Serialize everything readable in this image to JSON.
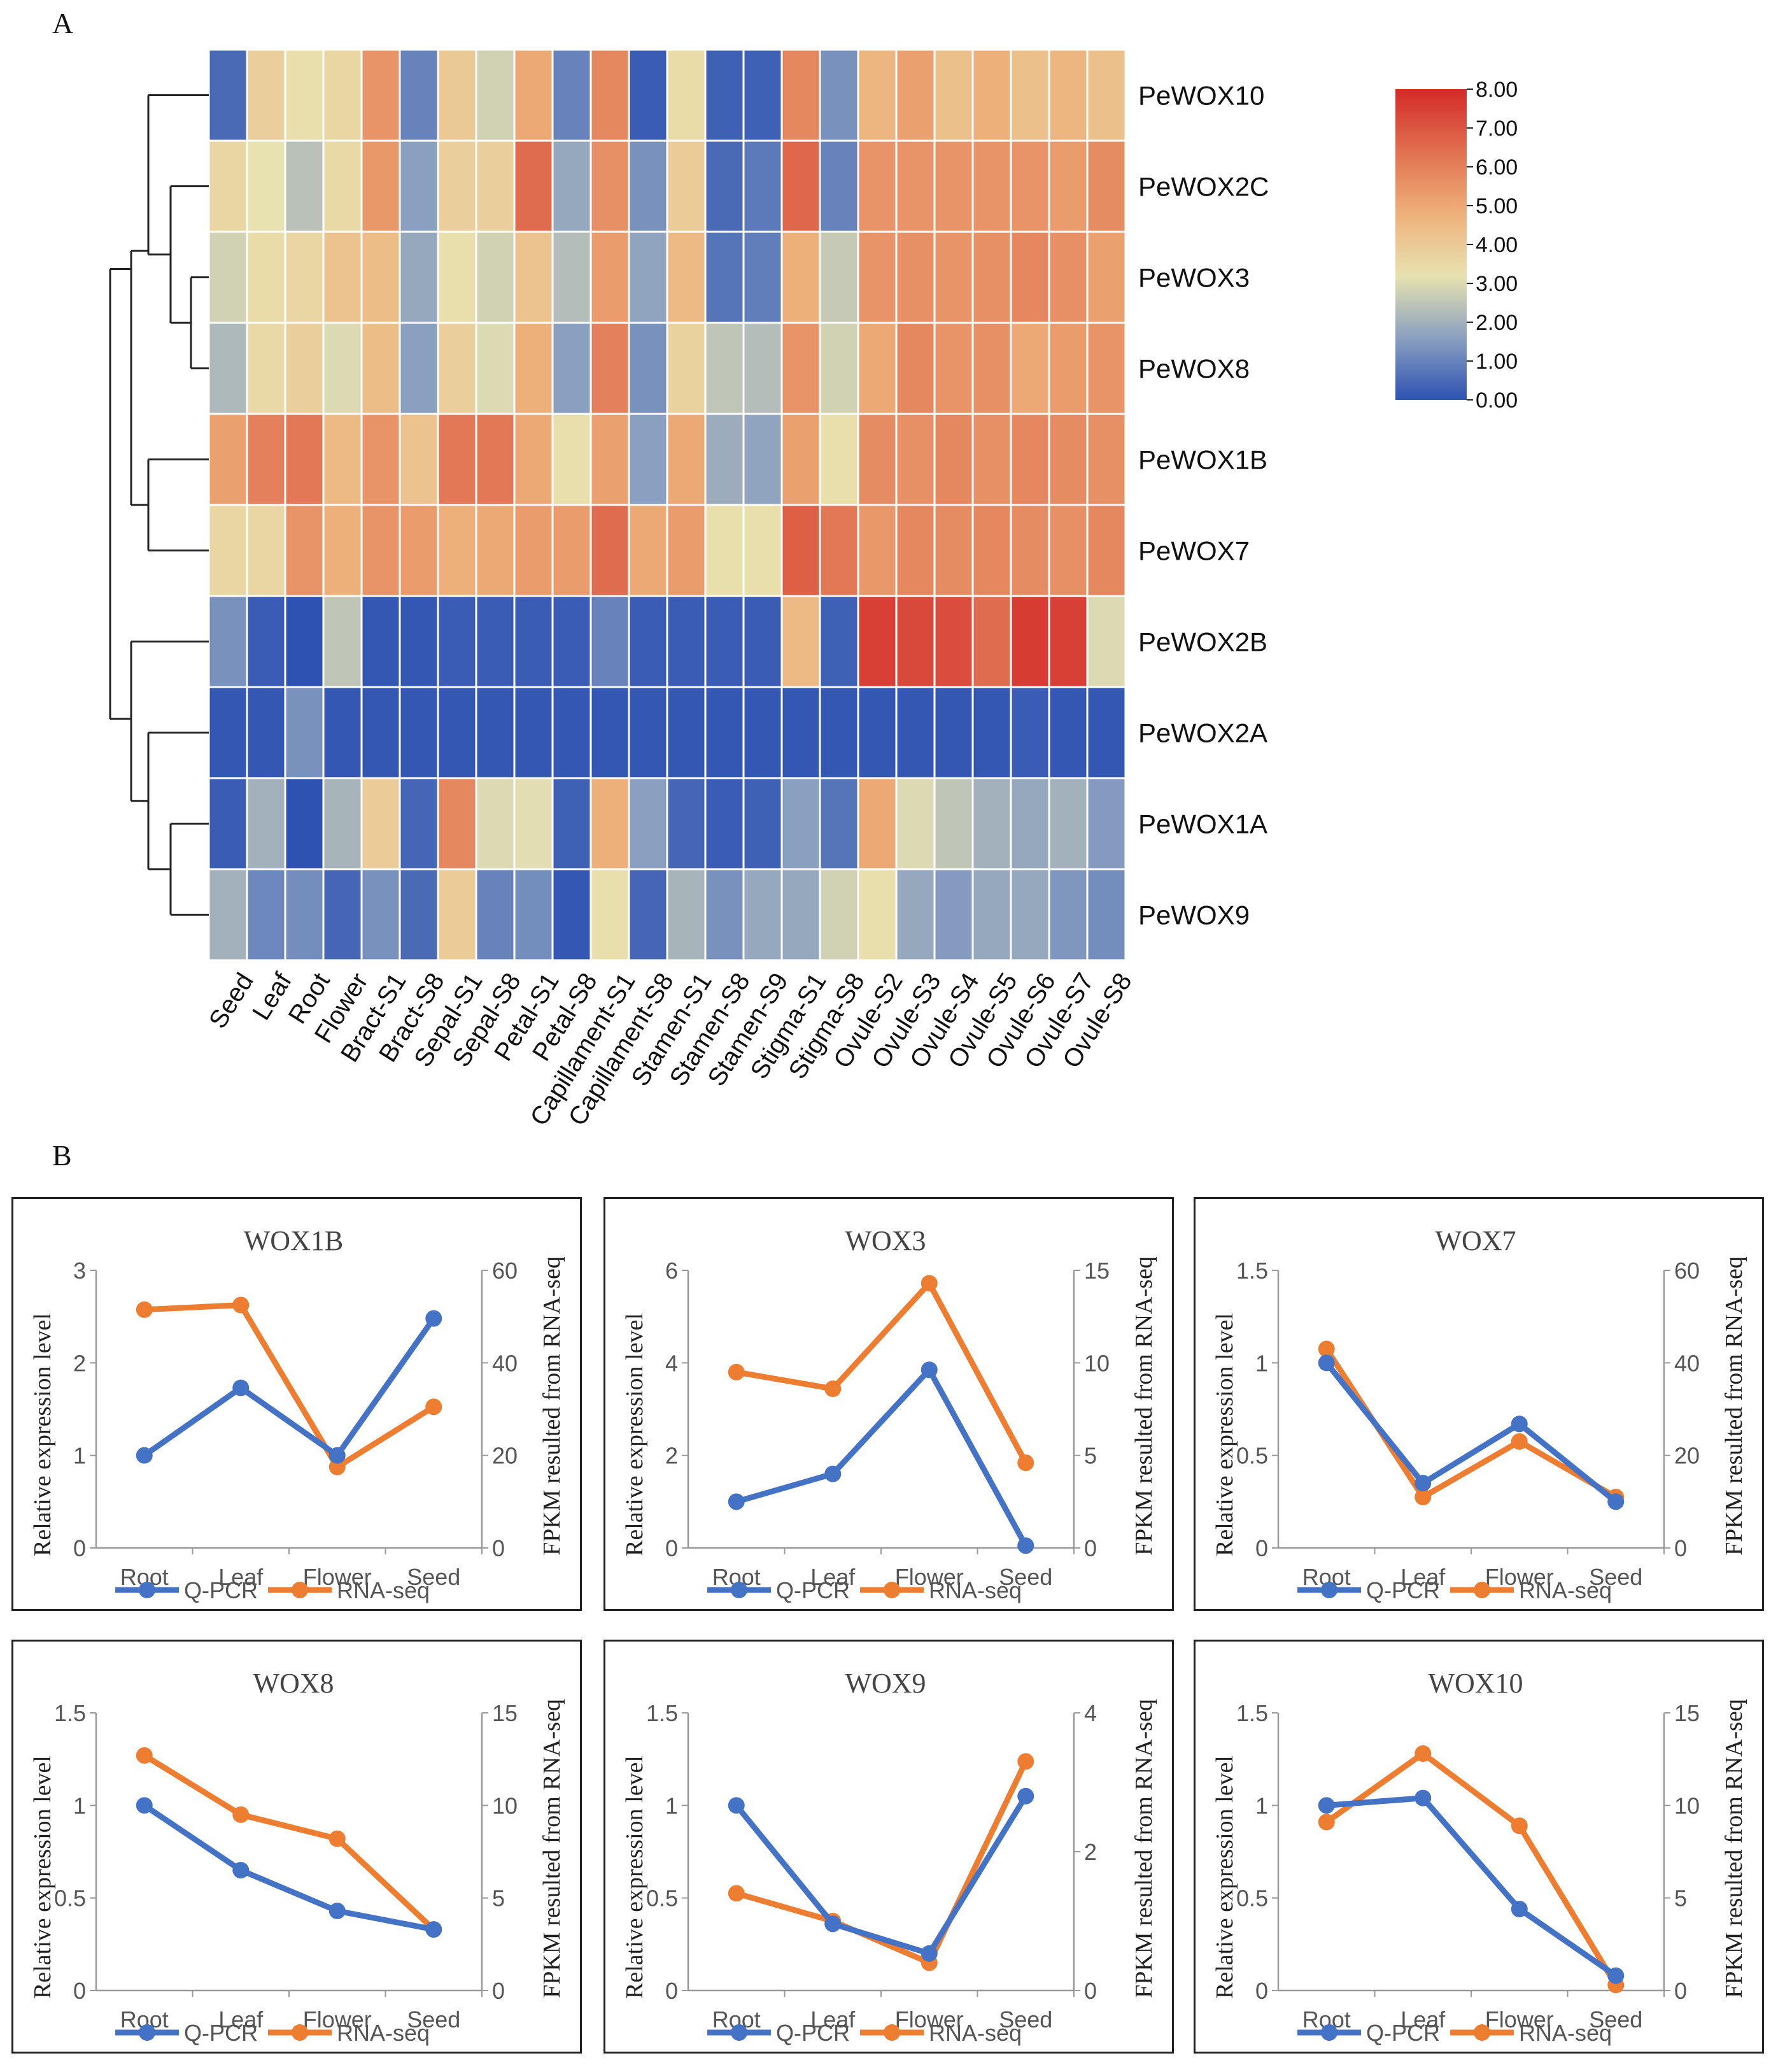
{
  "panel_a_label": "A",
  "panel_b_label": "B",
  "chart_data": [
    {
      "type": "heatmap",
      "title": "",
      "columns": [
        "Seed",
        "Leaf",
        "Root",
        "Flower",
        "Bract-S1",
        "Bract-S8",
        "Sepal-S1",
        "Sepal-S8",
        "Petal-S1",
        "Petal-S8",
        "Capillament-S1",
        "Capillament-S8",
        "Stamen-S1",
        "Stamen-S8",
        "Stamen-S9",
        "Stigma-S1",
        "Stigma-S8",
        "Ovule-S2",
        "Ovule-S3",
        "Ovule-S4",
        "Ovule-S5",
        "Ovule-S6",
        "Ovule-S7",
        "Ovule-S8"
      ],
      "rows": [
        "PeWOX10",
        "PeWOX2C",
        "PeWOX3",
        "PeWOX8",
        "PeWOX1B",
        "PeWOX7",
        "PeWOX2B",
        "PeWOX2A",
        "PeWOX1A",
        "PeWOX9"
      ],
      "values": [
        [
          0.5,
          3.8,
          3.3,
          3.6,
          5.5,
          1.0,
          4.0,
          2.8,
          5.0,
          1.0,
          5.8,
          0.2,
          3.4,
          0.3,
          0.3,
          5.8,
          1.3,
          4.6,
          5.2,
          4.3,
          4.8,
          4.3,
          4.6,
          4.3
        ],
        [
          3.6,
          3.2,
          2.4,
          3.5,
          5.4,
          1.6,
          3.8,
          3.8,
          6.5,
          1.8,
          5.6,
          1.3,
          3.9,
          0.5,
          0.8,
          6.6,
          1.0,
          5.5,
          5.5,
          5.5,
          5.5,
          5.5,
          5.3,
          5.7
        ],
        [
          2.8,
          3.4,
          3.6,
          4.2,
          4.4,
          1.8,
          3.3,
          2.8,
          4.2,
          2.3,
          5.3,
          1.7,
          4.5,
          0.7,
          0.9,
          4.8,
          2.6,
          5.5,
          5.6,
          5.5,
          5.6,
          5.8,
          5.6,
          5.2
        ],
        [
          2.2,
          3.5,
          3.8,
          3.0,
          4.4,
          1.6,
          3.8,
          3.0,
          4.8,
          1.6,
          6.0,
          1.3,
          3.7,
          2.5,
          2.3,
          5.5,
          2.8,
          5.0,
          5.8,
          5.5,
          5.6,
          5.0,
          5.3,
          5.5
        ],
        [
          5.2,
          6.0,
          6.2,
          4.5,
          5.5,
          4.2,
          6.2,
          6.2,
          5.0,
          3.3,
          5.2,
          1.6,
          5.0,
          1.9,
          1.7,
          5.2,
          3.3,
          5.7,
          5.6,
          5.8,
          5.6,
          5.8,
          5.7,
          5.6
        ],
        [
          3.6,
          3.6,
          5.5,
          4.8,
          5.5,
          5.3,
          4.8,
          5.0,
          5.3,
          5.3,
          6.5,
          5.0,
          5.3,
          3.3,
          3.3,
          6.8,
          6.2,
          5.4,
          5.8,
          5.7,
          5.8,
          5.7,
          5.6,
          5.8
        ],
        [
          1.3,
          0.2,
          0.0,
          2.5,
          0.1,
          0.1,
          0.2,
          0.2,
          0.2,
          0.2,
          1.0,
          0.2,
          0.2,
          0.2,
          0.2,
          4.5,
          0.3,
          7.5,
          7.3,
          7.2,
          6.5,
          7.6,
          7.5,
          3.0
        ],
        [
          0.1,
          0.1,
          1.3,
          0.1,
          0.1,
          0.1,
          0.1,
          0.1,
          0.1,
          0.1,
          0.1,
          0.1,
          0.1,
          0.1,
          0.1,
          0.1,
          0.1,
          0.1,
          0.1,
          0.1,
          0.1,
          0.2,
          0.1,
          0.1
        ],
        [
          0.2,
          2.0,
          0.0,
          2.1,
          3.9,
          0.4,
          5.8,
          3.0,
          3.1,
          0.3,
          4.8,
          1.6,
          0.4,
          0.2,
          0.3,
          1.6,
          0.7,
          5.0,
          3.0,
          2.5,
          2.0,
          1.8,
          2.0,
          1.5
        ],
        [
          2.0,
          1.1,
          1.2,
          0.4,
          1.3,
          0.5,
          3.9,
          1.0,
          1.2,
          0.1,
          3.3,
          0.4,
          2.1,
          1.3,
          1.8,
          1.8,
          2.8,
          3.3,
          1.8,
          1.5,
          1.8,
          1.8,
          1.4,
          1.2
        ]
      ],
      "colorbar": {
        "min": 0.0,
        "max": 8.0,
        "ticks": [
          "8.00",
          "7.00",
          "6.00",
          "5.00",
          "4.00",
          "3.00",
          "2.00",
          "1.00",
          "0.00"
        ],
        "colors": [
          "#2e52b2",
          "#8aa0c0",
          "#e8e2b0",
          "#eeb07a",
          "#e07050",
          "#d42a28"
        ]
      },
      "dendrogram": "left"
    },
    {
      "type": "line",
      "title": "WOX1B",
      "categories": [
        "Root",
        "Leaf",
        "Flower",
        "Seed"
      ],
      "ylabel": "Relative expression level",
      "y2label": "FPKM resulted from RNA-seq",
      "ylim": [
        0,
        3
      ],
      "yticks": [
        "0",
        "1",
        "2",
        "3"
      ],
      "y2lim": [
        0,
        60
      ],
      "y2ticks": [
        "0",
        "20",
        "40",
        "60"
      ],
      "series": [
        {
          "name": "Q-PCR",
          "axis": "left",
          "color": "#4472c4",
          "values": [
            1.0,
            1.73,
            1.0,
            2.48
          ]
        },
        {
          "name": "RNA-seq",
          "axis": "right",
          "color": "#ed7d31",
          "values": [
            51.5,
            52.5,
            17.5,
            30.5
          ]
        }
      ]
    },
    {
      "type": "line",
      "title": "WOX3",
      "categories": [
        "Root",
        "Leaf",
        "Flower",
        "Seed"
      ],
      "ylabel": "Relative expression level",
      "y2label": "FPKM resulted from RNA-seq",
      "ylim": [
        0,
        6
      ],
      "yticks": [
        "0",
        "2",
        "4",
        "6"
      ],
      "y2lim": [
        0,
        15
      ],
      "y2ticks": [
        "0",
        "5",
        "10",
        "15"
      ],
      "series": [
        {
          "name": "Q-PCR",
          "axis": "left",
          "color": "#4472c4",
          "values": [
            1.0,
            1.6,
            3.85,
            0.05
          ]
        },
        {
          "name": "RNA-seq",
          "axis": "right",
          "color": "#ed7d31",
          "values": [
            9.5,
            8.6,
            14.3,
            4.6
          ]
        }
      ]
    },
    {
      "type": "line",
      "title": "WOX7",
      "categories": [
        "Root",
        "Leaf",
        "Flower",
        "Seed"
      ],
      "ylabel": "Relative expression level",
      "y2label": "FPKM resulted from RNA-seq",
      "ylim": [
        0,
        1.5
      ],
      "yticks": [
        "0",
        "0.5",
        "1",
        "1.5"
      ],
      "y2lim": [
        0,
        60
      ],
      "y2ticks": [
        "0",
        "20",
        "40",
        "60"
      ],
      "series": [
        {
          "name": "Q-PCR",
          "axis": "left",
          "color": "#4472c4",
          "values": [
            1.0,
            0.35,
            0.67,
            0.25
          ]
        },
        {
          "name": "RNA-seq",
          "axis": "right",
          "color": "#ed7d31",
          "values": [
            43,
            11,
            23,
            11
          ]
        }
      ]
    },
    {
      "type": "line",
      "title": "WOX8",
      "categories": [
        "Root",
        "Leaf",
        "Flower",
        "Seed"
      ],
      "ylabel": "Relative expression level",
      "y2label": "FPKM resulted from RNA-seq",
      "ylim": [
        0,
        1.5
      ],
      "yticks": [
        "0",
        "0.5",
        "1",
        "1.5"
      ],
      "y2lim": [
        0,
        15
      ],
      "y2ticks": [
        "0",
        "5",
        "10",
        "15"
      ],
      "series": [
        {
          "name": "Q-PCR",
          "axis": "left",
          "color": "#4472c4",
          "values": [
            1.0,
            0.65,
            0.43,
            0.33
          ]
        },
        {
          "name": "RNA-seq",
          "axis": "right",
          "color": "#ed7d31",
          "values": [
            12.7,
            9.5,
            8.2,
            3.3
          ]
        }
      ]
    },
    {
      "type": "line",
      "title": "WOX9",
      "categories": [
        "Root",
        "Leaf",
        "Flower",
        "Seed"
      ],
      "ylabel": "Relative expression level",
      "y2label": "FPKM resulted from RNA-seq",
      "ylim": [
        0,
        1.5
      ],
      "yticks": [
        "0",
        "0.5",
        "1",
        "1.5"
      ],
      "y2lim": [
        0,
        4
      ],
      "y2ticks": [
        "0",
        "2",
        "4"
      ],
      "series": [
        {
          "name": "Q-PCR",
          "axis": "left",
          "color": "#4472c4",
          "values": [
            1.0,
            0.36,
            0.2,
            1.05
          ]
        },
        {
          "name": "RNA-seq",
          "axis": "right",
          "color": "#ed7d31",
          "values": [
            1.4,
            1.0,
            0.4,
            3.3
          ]
        }
      ]
    },
    {
      "type": "line",
      "title": "WOX10",
      "categories": [
        "Root",
        "Leaf",
        "Flower",
        "Seed"
      ],
      "ylabel": "Relative expression level",
      "y2label": "FPKM resulted from RNA-seq",
      "ylim": [
        0,
        1.5
      ],
      "yticks": [
        "0",
        "0.5",
        "1",
        "1.5"
      ],
      "y2lim": [
        0,
        15
      ],
      "y2ticks": [
        "0",
        "5",
        "10",
        "15"
      ],
      "series": [
        {
          "name": "Q-PCR",
          "axis": "left",
          "color": "#4472c4",
          "values": [
            1.0,
            1.04,
            0.44,
            0.08
          ]
        },
        {
          "name": "RNA-seq",
          "axis": "right",
          "color": "#ed7d31",
          "values": [
            9.1,
            12.8,
            8.9,
            0.3
          ]
        }
      ]
    }
  ]
}
